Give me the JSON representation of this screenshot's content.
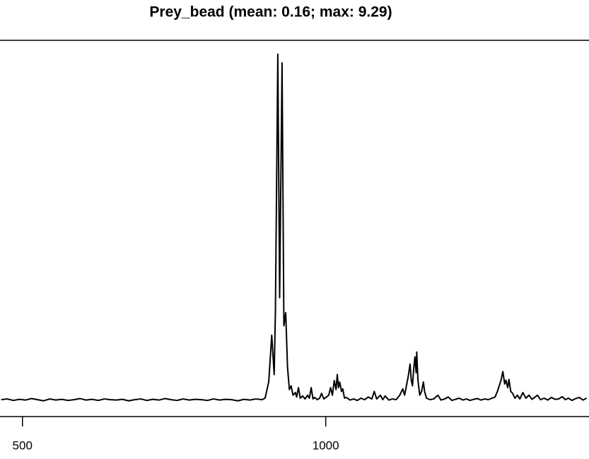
{
  "chart_data": {
    "type": "line",
    "title": "Prey_bead (mean: 0.16; max: 9.29)",
    "x": [
      465,
      475,
      485,
      495,
      505,
      515,
      525,
      535,
      545,
      555,
      565,
      575,
      585,
      595,
      605,
      615,
      625,
      635,
      645,
      655,
      665,
      675,
      685,
      695,
      705,
      715,
      725,
      735,
      745,
      755,
      765,
      775,
      785,
      795,
      805,
      815,
      825,
      835,
      845,
      855,
      865,
      875,
      885,
      895,
      900,
      906,
      911,
      915,
      917,
      921,
      924,
      928,
      931,
      934,
      937,
      940,
      943,
      946,
      950,
      952,
      955,
      958,
      962,
      966,
      970,
      973,
      976,
      979,
      982,
      986,
      990,
      993,
      997,
      1001,
      1005,
      1008,
      1011,
      1014,
      1017,
      1019,
      1021,
      1023,
      1026,
      1028,
      1031,
      1034,
      1040,
      1046,
      1052,
      1058,
      1064,
      1070,
      1076,
      1080,
      1084,
      1090,
      1094,
      1098,
      1104,
      1110,
      1116,
      1122,
      1127,
      1130,
      1133,
      1136,
      1139,
      1141,
      1143,
      1145,
      1147,
      1149,
      1150,
      1152,
      1155,
      1158,
      1161,
      1163,
      1166,
      1172,
      1178,
      1185,
      1190,
      1196,
      1202,
      1208,
      1214,
      1220,
      1226,
      1232,
      1238,
      1244,
      1250,
      1256,
      1262,
      1268,
      1274,
      1279,
      1283,
      1286,
      1289,
      1292,
      1295,
      1297,
      1300,
      1302,
      1305,
      1308,
      1312,
      1316,
      1320,
      1325,
      1330,
      1335,
      1340,
      1345,
      1349,
      1354,
      1360,
      1366,
      1372,
      1378,
      1384,
      1390,
      1395,
      1400,
      1406,
      1412,
      1418,
      1424,
      1430
    ],
    "series": [
      {
        "color": "#000000",
        "values": [
          0.08,
          0.1,
          0.06,
          0.09,
          0.07,
          0.11,
          0.08,
          0.05,
          0.1,
          0.07,
          0.09,
          0.06,
          0.08,
          0.11,
          0.07,
          0.09,
          0.06,
          0.1,
          0.08,
          0.07,
          0.09,
          0.05,
          0.08,
          0.1,
          0.06,
          0.09,
          0.07,
          0.11,
          0.08,
          0.06,
          0.1,
          0.07,
          0.09,
          0.08,
          0.06,
          0.1,
          0.07,
          0.09,
          0.08,
          0.05,
          0.09,
          0.07,
          0.1,
          0.08,
          0.12,
          0.55,
          1.8,
          0.75,
          2.4,
          9.29,
          2.8,
          9.06,
          2.05,
          2.4,
          0.95,
          0.35,
          0.45,
          0.2,
          0.27,
          0.15,
          0.4,
          0.12,
          0.18,
          0.1,
          0.2,
          0.12,
          0.4,
          0.1,
          0.14,
          0.08,
          0.12,
          0.25,
          0.1,
          0.15,
          0.2,
          0.4,
          0.2,
          0.59,
          0.35,
          0.75,
          0.4,
          0.55,
          0.3,
          0.37,
          0.12,
          0.14,
          0.07,
          0.1,
          0.06,
          0.12,
          0.08,
          0.15,
          0.1,
          0.3,
          0.1,
          0.2,
          0.08,
          0.18,
          0.07,
          0.1,
          0.08,
          0.2,
          0.37,
          0.2,
          0.45,
          0.7,
          1.03,
          0.6,
          0.45,
          0.9,
          1.22,
          0.8,
          1.35,
          0.6,
          0.2,
          0.3,
          0.55,
          0.3,
          0.12,
          0.08,
          0.1,
          0.2,
          0.07,
          0.1,
          0.15,
          0.06,
          0.09,
          0.12,
          0.07,
          0.1,
          0.06,
          0.09,
          0.11,
          0.07,
          0.1,
          0.08,
          0.12,
          0.15,
          0.3,
          0.45,
          0.6,
          0.83,
          0.5,
          0.6,
          0.4,
          0.62,
          0.3,
          0.25,
          0.12,
          0.2,
          0.1,
          0.27,
          0.12,
          0.2,
          0.09,
          0.15,
          0.2,
          0.08,
          0.12,
          0.07,
          0.14,
          0.09,
          0.1,
          0.16,
          0.08,
          0.12,
          0.06,
          0.11,
          0.14,
          0.07,
          0.12
        ]
      }
    ],
    "xlim": [
      463,
      1434
    ],
    "ylim": [
      -0.37,
      9.66
    ],
    "xticks": [
      500,
      1000
    ]
  }
}
